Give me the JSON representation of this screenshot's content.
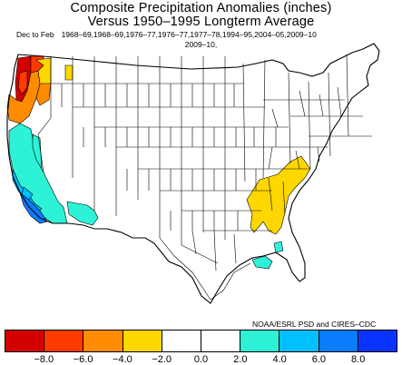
{
  "title_line1": "Composite Precipitation Anomalies (inches)",
  "title_line2": "Versus 1950–1995 Longterm Average",
  "season": "Dec to Feb",
  "years_line1": "1968–69,1968–69,1976–77,1976–77,1977–78,1994–95,2004–05,2009–10",
  "years_line2": "2009–10,",
  "credit": "NOAA/ESRL PSD and CIRES–CDC",
  "legend": {
    "colors": [
      "#d40000",
      "#ff3b00",
      "#ff8c00",
      "#ffd700",
      "#ffffff",
      "#ffffff",
      "#2ef2d8",
      "#00c0ff",
      "#0a7cff",
      "#0a34ff"
    ],
    "tick_labels": [
      "−8.0",
      "−6.0",
      "−4.0",
      "−2.0",
      "0.0",
      "2.0",
      "4.0",
      "6.0",
      "8.0"
    ]
  }
}
